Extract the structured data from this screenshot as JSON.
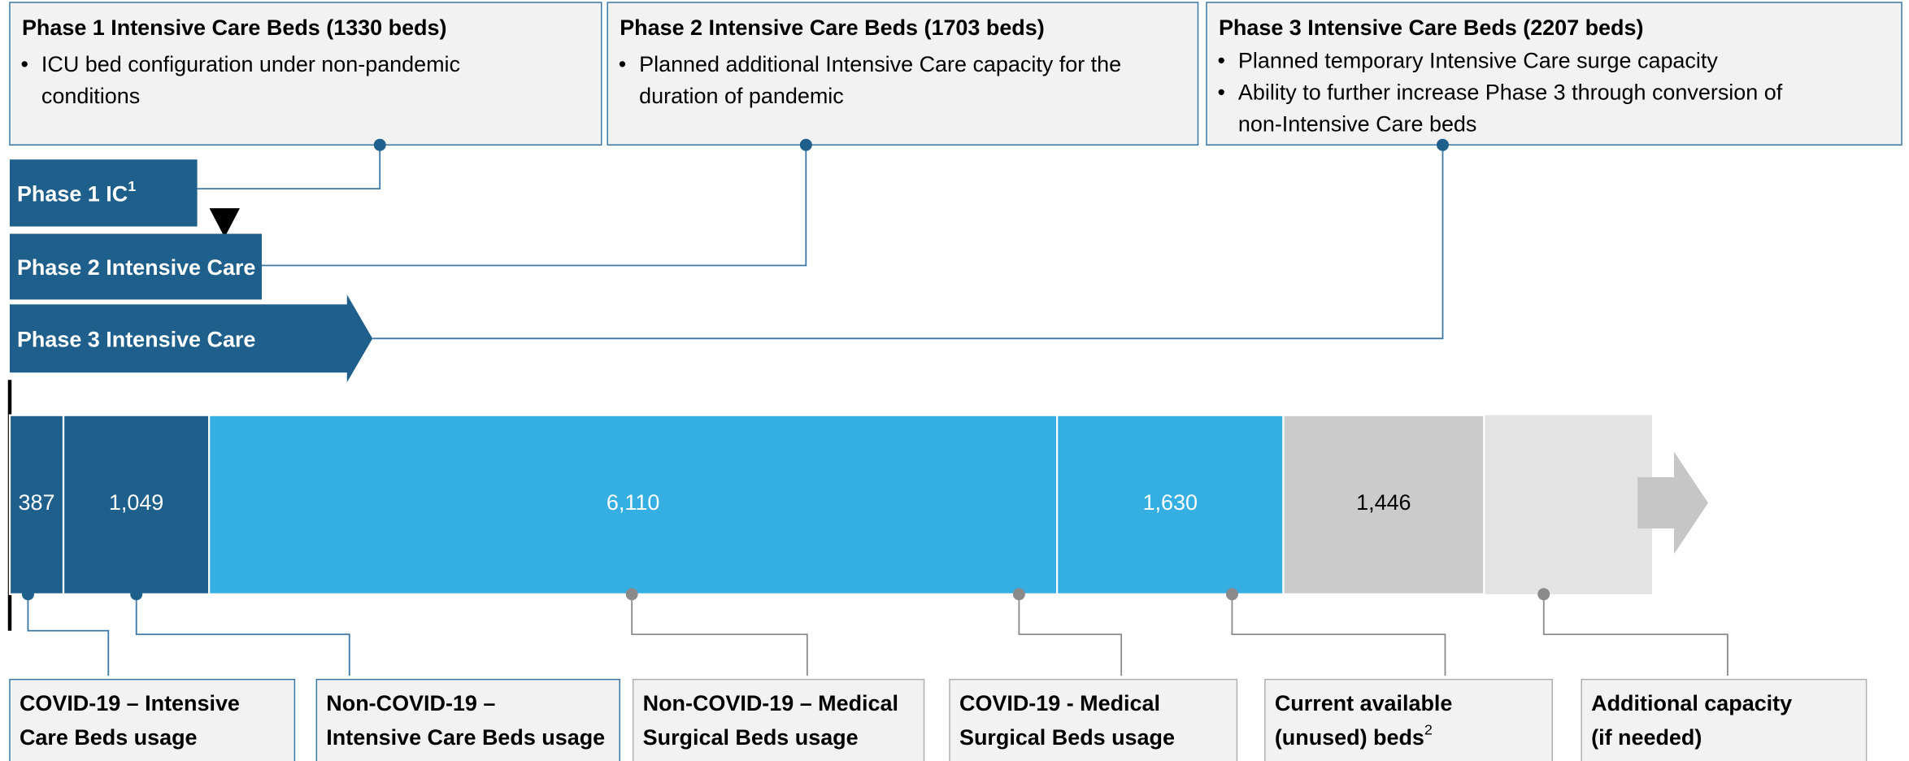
{
  "phase_boxes": [
    {
      "title": "Phase 1 Intensive Care Beds (1330 beds)",
      "bullets": [
        [
          "ICU bed configuration under non-pandemic",
          "conditions"
        ]
      ]
    },
    {
      "title": "Phase 2 Intensive Care Beds (1703 beds)",
      "bullets": [
        [
          "Planned additional Intensive Care capacity for the",
          "duration of pandemic"
        ]
      ]
    },
    {
      "title": "Phase 3 Intensive Care Beds (2207 beds)",
      "bullets": [
        [
          "Planned temporary Intensive Care surge capacity"
        ],
        [
          "Ability to further increase Phase 3 through conversion of",
          "non-Intensive Care beds"
        ]
      ]
    }
  ],
  "phase_bars": [
    {
      "label": "Phase 1 IC",
      "sup": "1"
    },
    {
      "label": "Phase 2 Intensive Care"
    },
    {
      "label": "Phase 3 Intensive Care"
    }
  ],
  "segments": [
    {
      "value": 387,
      "label": "387"
    },
    {
      "value": 1049,
      "label": "1,049"
    },
    {
      "value": 6110,
      "label": "6,110"
    },
    {
      "value": 1630,
      "label": "1,630"
    },
    {
      "value": 1446,
      "label": "1,446"
    }
  ],
  "categories": [
    {
      "lines": [
        "COVID-19 – Intensive",
        "Care Beds usage"
      ]
    },
    {
      "lines": [
        "Non-COVID-19 –",
        "Intensive Care Beds usage"
      ]
    },
    {
      "lines": [
        "Non-COVID-19 – Medical",
        "Surgical Beds usage"
      ]
    },
    {
      "lines": [
        "COVID-19 - Medical",
        "Surgical Beds usage"
      ]
    },
    {
      "lines": [
        "Current available",
        "(unused) beds"
      ],
      "sup": "2"
    },
    {
      "lines": [
        "Additional capacity",
        "(if needed)"
      ]
    }
  ]
}
